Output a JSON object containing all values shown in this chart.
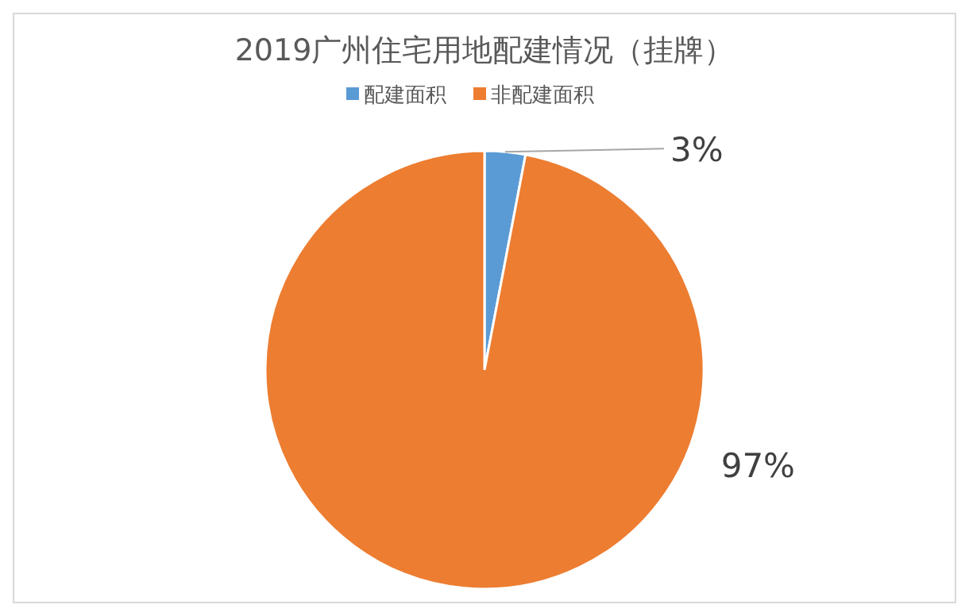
{
  "chart_data": {
    "type": "pie",
    "title": "2019广州住宅用地配建情况（挂牌）",
    "categories": [
      "配建面积",
      "非配建面积"
    ],
    "values": [
      3,
      97
    ],
    "colors": [
      "#5b9bd5",
      "#ed7d31"
    ],
    "value_labels": [
      "3%",
      "97%"
    ],
    "legend": "top"
  }
}
